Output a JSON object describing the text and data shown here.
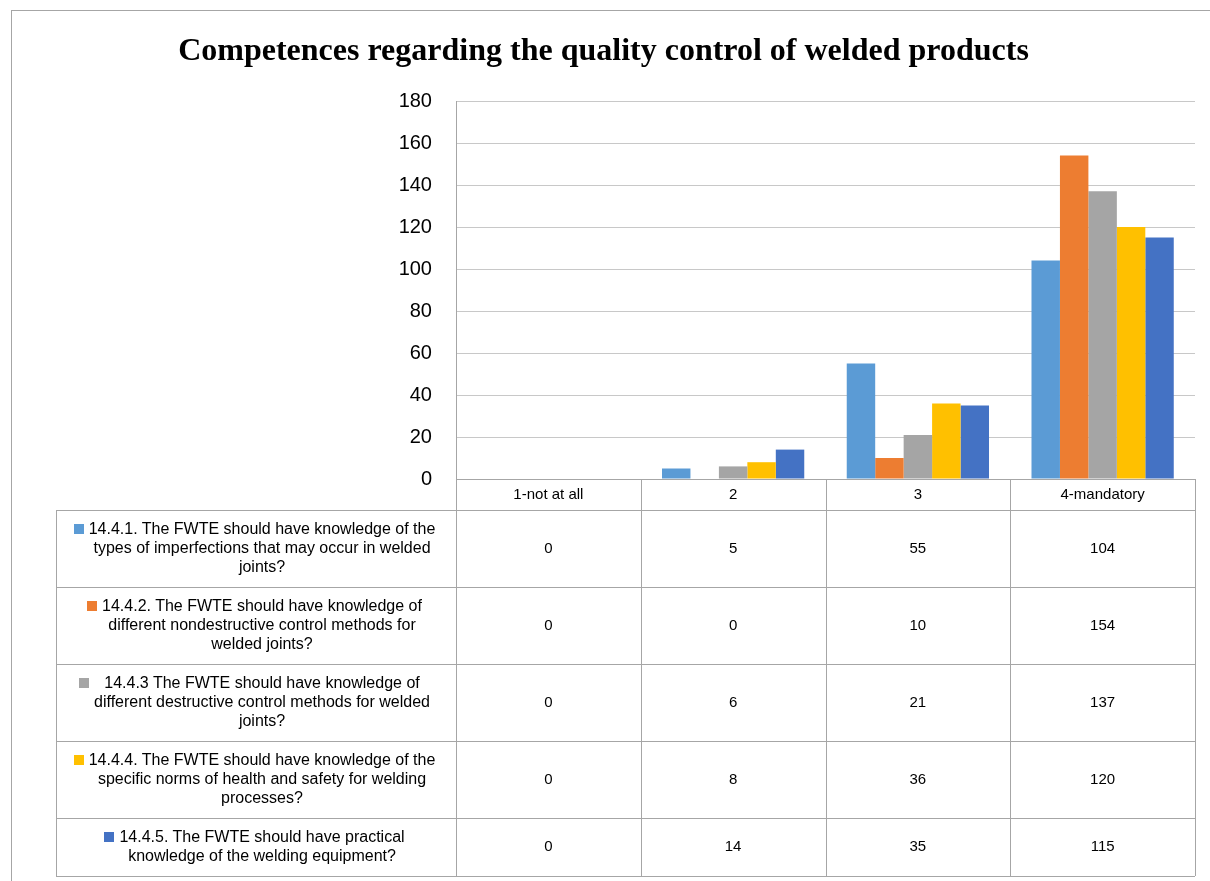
{
  "chart_data": {
    "type": "bar",
    "title": "Competences regarding the quality control of welded products",
    "categories": [
      "1-not at all",
      "2",
      "3",
      "4-mandatory"
    ],
    "series": [
      {
        "name": "14.4.1. The FWTE should have knowledge of the types of imperfections that may occur in welded joints?",
        "color": "#5b9bd5",
        "values": [
          0,
          5,
          55,
          104
        ]
      },
      {
        "name": "14.4.2. The FWTE should have knowledge of different nondestructive control methods for welded joints?",
        "color": "#ed7d31",
        "values": [
          0,
          0,
          10,
          154
        ]
      },
      {
        "name": "14.4.3 The FWTE should have knowledge of different destructive control methods for welded joints?",
        "color": "#a5a5a5",
        "values": [
          0,
          6,
          21,
          137
        ]
      },
      {
        "name": "14.4.4. The FWTE should have knowledge of the specific norms of health and safety for welding processes?",
        "color": "#ffc000",
        "values": [
          0,
          8,
          36,
          120
        ]
      },
      {
        "name": "14.4.5. The FWTE should have practical knowledge of the welding equipment?",
        "color": "#4472c4",
        "values": [
          0,
          14,
          35,
          115
        ]
      }
    ],
    "ylim": [
      0,
      180
    ],
    "yticks": [
      0,
      20,
      40,
      60,
      80,
      100,
      120,
      140,
      160,
      180
    ],
    "grid": "y",
    "legend": "bottom",
    "data_labels": true
  }
}
